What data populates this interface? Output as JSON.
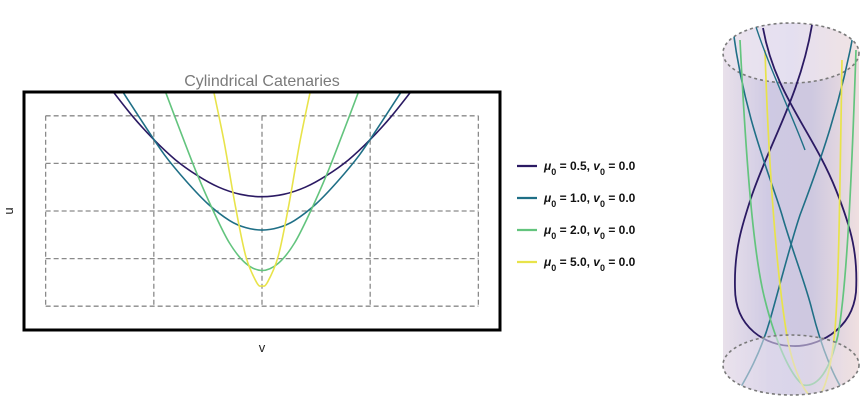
{
  "chart_data": {
    "type": "line",
    "title": "Cylindrical Catenaries",
    "xlabel": "v",
    "ylabel": "u",
    "grid": true,
    "legend_position": "right",
    "xlim": [
      -2.2,
      2.2
    ],
    "ylim": [
      -1.0,
      1.0
    ],
    "grid_x": [
      -2.0,
      -1.0,
      0.0,
      1.0,
      2.0
    ],
    "grid_y": [
      -0.8,
      -0.4,
      0.0,
      0.4,
      0.8
    ],
    "series": [
      {
        "mu0": "0.5",
        "v0": "0.0",
        "color": "#2b1a63",
        "x": [
          -1.4,
          -1.2,
          -1.0,
          -0.8,
          -0.6,
          -0.4,
          -0.2,
          0.0,
          0.2,
          0.4,
          0.6,
          0.8,
          1.0,
          1.2,
          1.4
        ],
        "y": [
          1.03,
          0.8,
          0.6,
          0.43,
          0.3,
          0.2,
          0.14,
          0.12,
          0.14,
          0.2,
          0.3,
          0.43,
          0.6,
          0.8,
          1.03
        ]
      },
      {
        "mu0": "1.0",
        "v0": "0.0",
        "color": "#1f6f86",
        "x": [
          -1.3,
          -1.1,
          -0.9,
          -0.7,
          -0.5,
          -0.3,
          -0.15,
          0.0,
          0.15,
          0.3,
          0.5,
          0.7,
          0.9,
          1.1,
          1.3
        ],
        "y": [
          1.02,
          0.74,
          0.47,
          0.25,
          0.06,
          -0.08,
          -0.14,
          -0.16,
          -0.14,
          -0.08,
          0.06,
          0.25,
          0.47,
          0.74,
          1.02
        ]
      },
      {
        "mu0": "2.0",
        "v0": "0.0",
        "color": "#63c47e",
        "x": [
          -0.9,
          -0.75,
          -0.6,
          -0.45,
          -0.3,
          -0.15,
          0.0,
          0.15,
          0.3,
          0.45,
          0.6,
          0.75,
          0.9
        ],
        "y": [
          1.02,
          0.66,
          0.31,
          0.0,
          -0.27,
          -0.44,
          -0.5,
          -0.44,
          -0.27,
          0.0,
          0.31,
          0.66,
          1.02
        ]
      },
      {
        "mu0": "5.0",
        "v0": "0.0",
        "color": "#e8e34a",
        "x": [
          -0.45,
          -0.35,
          -0.25,
          -0.15,
          -0.05,
          0.0,
          0.05,
          0.15,
          0.25,
          0.35,
          0.45
        ],
        "y": [
          1.02,
          0.58,
          0.06,
          -0.38,
          -0.6,
          -0.63,
          -0.6,
          -0.38,
          0.06,
          0.58,
          1.02
        ]
      }
    ]
  },
  "cylinder": {
    "body_color": "#c9c2df",
    "rim_color": "#777777"
  }
}
